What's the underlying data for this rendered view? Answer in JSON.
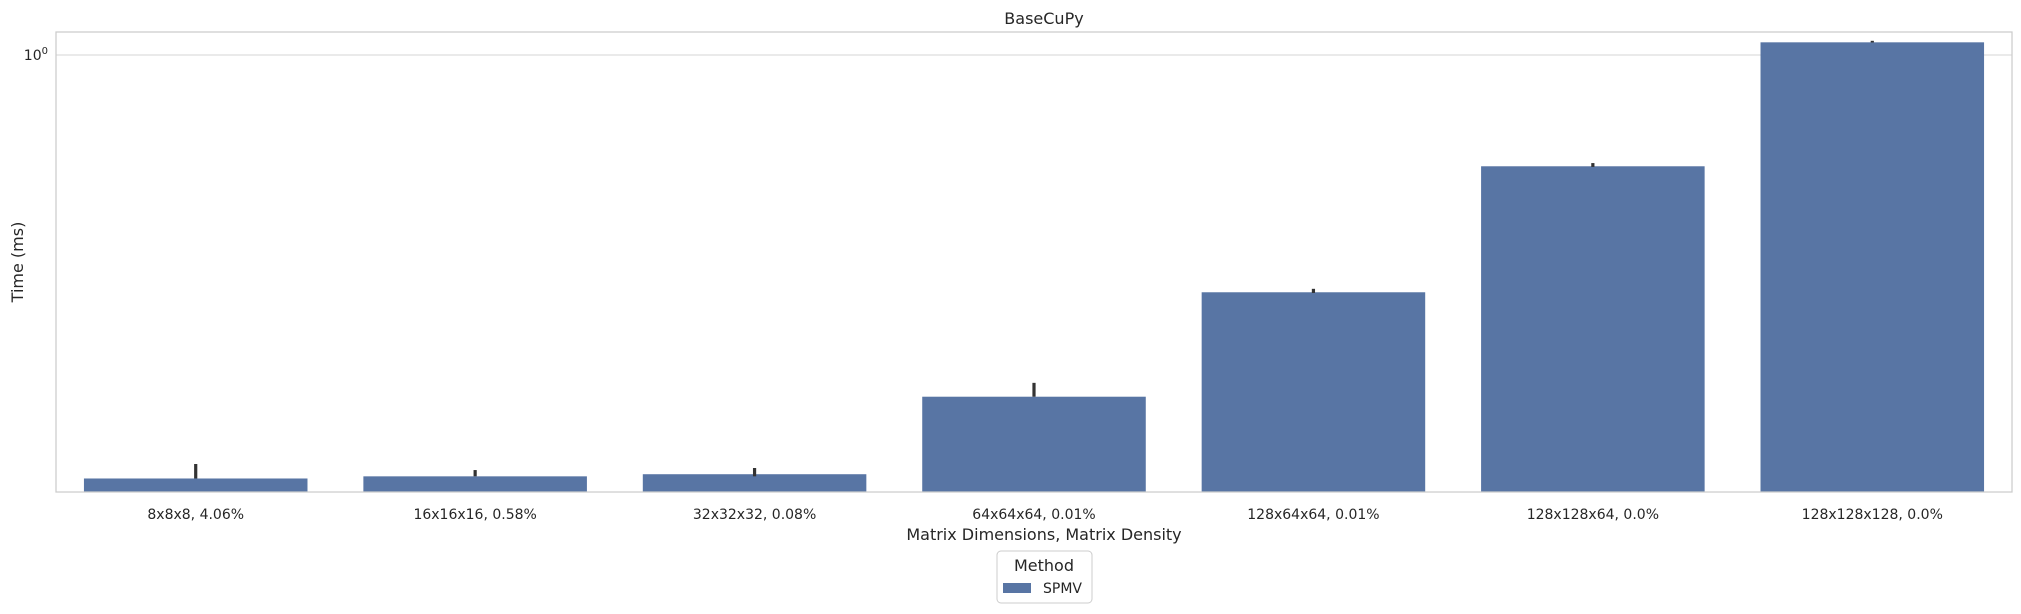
{
  "chart_data": {
    "type": "bar",
    "title": "BaseCuPy",
    "xlabel": "Matrix Dimensions, Matrix Density",
    "ylabel": "Time (ms)",
    "yscale": "log",
    "ylim": [
      0.07,
      1.15
    ],
    "yticks": [
      {
        "value": 1,
        "base": "10",
        "exp": "0"
      }
    ],
    "grid": true,
    "categories": [
      "8x8x8, 4.06%",
      "16x16x16, 0.58%",
      "32x32x32, 0.08%",
      "64x64x64, 0.01%",
      "128x64x64, 0.01%",
      "128x128x64, 0.0%",
      "128x128x128, 0.0%"
    ],
    "series": [
      {
        "name": "SPMV",
        "color": "#5875a4",
        "values": [
          0.076,
          0.077,
          0.078,
          0.125,
          0.236,
          0.508,
          1.08
        ],
        "error_low": [
          0.076,
          0.077,
          0.077,
          0.125,
          0.235,
          0.506,
          1.079
        ],
        "error_high": [
          0.083,
          0.08,
          0.081,
          0.136,
          0.241,
          0.518,
          1.09
        ]
      }
    ],
    "legend": {
      "title": "Method",
      "placement": "bottom-center"
    }
  }
}
